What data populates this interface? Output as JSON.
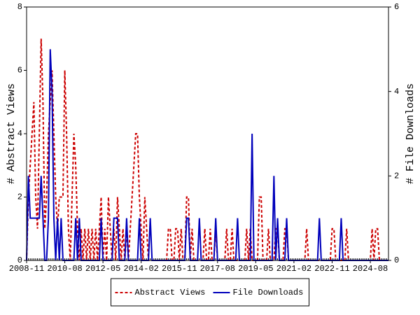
{
  "chart_data": {
    "type": "line",
    "y_label": "# Abstract Views",
    "y2_label": "# File Downloads",
    "x": [
      "2008-11",
      "2008-12",
      "2009-01",
      "2009-02",
      "2009-03",
      "2009-04",
      "2009-05",
      "2009-06",
      "2009-07",
      "2009-08",
      "2009-09",
      "2009-10",
      "2009-11",
      "2009-12",
      "2010-01",
      "2010-02",
      "2010-03",
      "2010-04",
      "2010-05",
      "2010-06",
      "2010-07",
      "2010-08",
      "2010-09",
      "2010-10",
      "2010-11",
      "2010-12",
      "2011-01",
      "2011-02",
      "2011-03",
      "2011-04",
      "2011-05",
      "2011-06",
      "2011-07",
      "2011-08",
      "2011-09",
      "2011-10",
      "2011-11",
      "2011-12",
      "2012-01",
      "2012-02",
      "2012-03",
      "2012-04",
      "2012-05",
      "2012-06",
      "2012-07",
      "2012-08",
      "2012-09",
      "2012-10",
      "2012-11",
      "2012-12",
      "2013-01",
      "2013-02",
      "2013-03",
      "2013-04",
      "2013-05",
      "2013-06",
      "2013-07",
      "2013-08",
      "2013-09",
      "2013-10",
      "2013-11",
      "2013-12",
      "2014-01",
      "2014-02",
      "2014-03",
      "2014-04",
      "2014-05",
      "2014-06",
      "2014-07",
      "2014-08",
      "2014-09",
      "2014-10",
      "2014-11",
      "2014-12",
      "2015-01",
      "2015-02",
      "2015-03",
      "2015-04",
      "2015-05",
      "2015-06",
      "2015-07",
      "2015-08",
      "2015-09",
      "2015-10",
      "2015-11",
      "2015-12",
      "2016-01",
      "2016-02",
      "2016-03",
      "2016-04",
      "2016-05",
      "2016-06",
      "2016-07",
      "2016-08",
      "2016-09",
      "2016-10",
      "2016-11",
      "2016-12",
      "2017-01",
      "2017-02",
      "2017-03",
      "2017-04",
      "2017-05",
      "2017-06",
      "2017-07",
      "2017-08",
      "2017-09",
      "2017-10",
      "2017-11",
      "2017-12",
      "2018-01",
      "2018-02",
      "2018-03",
      "2018-04",
      "2018-05",
      "2018-06",
      "2018-07",
      "2018-08",
      "2018-09",
      "2018-10",
      "2018-11",
      "2018-12",
      "2019-01",
      "2019-02",
      "2019-03",
      "2019-04",
      "2019-05",
      "2019-06",
      "2019-07",
      "2019-08",
      "2019-09",
      "2019-10",
      "2019-11",
      "2019-12",
      "2020-01",
      "2020-02",
      "2020-03",
      "2020-04",
      "2020-05",
      "2020-06",
      "2020-07",
      "2020-08",
      "2020-09",
      "2020-10",
      "2020-11",
      "2020-12",
      "2021-01",
      "2021-02",
      "2021-03",
      "2021-04",
      "2021-05",
      "2021-06",
      "2021-07",
      "2021-08",
      "2021-09",
      "2021-10",
      "2021-11",
      "2021-12",
      "2022-01",
      "2022-02",
      "2022-03",
      "2022-04",
      "2022-05",
      "2022-06",
      "2022-07",
      "2022-08",
      "2022-09",
      "2022-10",
      "2022-11",
      "2022-12",
      "2023-01",
      "2023-02",
      "2023-03",
      "2023-04",
      "2023-05",
      "2023-06",
      "2023-07",
      "2023-08",
      "2023-09",
      "2023-10",
      "2023-11",
      "2023-12",
      "2024-01",
      "2024-02",
      "2024-03",
      "2024-04",
      "2024-05",
      "2024-06",
      "2024-07",
      "2024-08",
      "2024-09",
      "2024-10",
      "2024-11",
      "2024-12",
      "2025-01",
      "2025-02",
      "2025-03",
      "2025-04",
      "2025-05",
      "2025-06"
    ],
    "xlim": [
      "2008-11",
      "2025-06"
    ],
    "xticks": [
      "2008-11",
      "2010-08",
      "2012-05",
      "2014-02",
      "2015-11",
      "2017-08",
      "2019-05",
      "2021-02",
      "2022-11",
      "2024-08"
    ],
    "ylim": [
      0,
      8
    ],
    "yticks": [
      0,
      2,
      4,
      6,
      8
    ],
    "y2lim": [
      0,
      6
    ],
    "y2ticks": [
      0,
      2,
      4,
      6
    ],
    "legend": "bottom",
    "series": [
      {
        "name": "Abstract Views",
        "color": "#cc0000",
        "line_style": "dashed",
        "values": [
          0,
          2,
          3,
          4,
          5,
          2,
          1,
          4,
          7,
          5,
          1,
          2,
          4,
          5,
          6,
          4,
          2,
          1,
          2,
          2,
          2,
          6,
          4,
          1,
          0,
          2,
          4,
          3,
          1,
          0,
          1,
          0,
          1,
          0,
          1,
          0,
          1,
          0,
          1,
          0,
          1,
          2,
          0,
          1,
          0,
          2,
          1,
          0,
          1,
          0,
          2,
          1,
          0,
          1,
          0,
          1,
          0,
          1,
          2,
          3,
          4,
          4,
          2,
          1,
          0,
          2,
          1,
          0,
          0,
          0,
          0,
          0,
          0,
          0,
          0,
          0,
          0,
          0,
          1,
          1,
          0,
          0,
          1,
          1,
          0,
          1,
          0,
          0,
          2,
          2,
          0,
          1,
          0,
          0,
          0,
          0,
          0,
          0,
          1,
          0,
          0,
          1,
          0,
          0,
          1,
          0,
          0,
          0,
          0,
          0,
          1,
          0,
          0,
          1,
          0,
          0,
          0,
          0,
          0,
          0,
          0,
          1,
          0,
          1,
          0,
          0,
          0,
          0,
          2,
          2,
          0,
          0,
          0,
          1,
          0,
          0,
          0,
          1,
          1,
          0,
          0,
          0,
          1,
          1,
          0,
          0,
          0,
          0,
          0,
          0,
          0,
          0,
          0,
          0,
          1,
          0,
          0,
          0,
          0,
          0,
          0,
          0,
          0,
          0,
          0,
          0,
          0,
          0,
          1,
          1,
          0,
          0,
          0,
          0,
          0,
          0,
          1,
          0,
          0,
          0,
          0,
          0,
          0,
          0,
          0,
          0,
          0,
          0,
          0,
          0,
          1,
          0,
          1,
          1,
          0,
          0,
          0,
          0,
          0,
          0
        ]
      },
      {
        "name": "File Downloads",
        "color": "#0000bb",
        "line_style": "solid",
        "axis": "y2",
        "values": [
          0,
          2,
          1,
          1,
          1,
          1,
          1,
          1,
          2,
          1,
          0,
          0,
          1,
          5,
          4,
          1,
          0,
          1,
          0,
          1,
          0,
          0,
          0,
          0,
          0,
          0,
          0,
          1,
          0,
          1,
          0,
          0,
          0,
          0,
          0,
          0,
          0,
          0,
          0,
          0,
          0,
          1,
          0,
          0,
          0,
          0,
          0,
          0,
          1,
          1,
          1,
          0,
          0,
          0,
          0,
          1,
          0,
          0,
          0,
          0,
          0,
          0,
          1,
          0,
          0,
          0,
          0,
          0,
          1,
          0,
          0,
          0,
          0,
          0,
          0,
          0,
          0,
          0,
          0,
          0,
          0,
          0,
          0,
          0,
          0,
          0,
          0,
          0,
          1,
          1,
          0,
          0,
          0,
          0,
          0,
          1,
          0,
          0,
          0,
          0,
          0,
          0,
          0,
          0,
          1,
          0,
          0,
          0,
          0,
          0,
          0,
          0,
          0,
          0,
          0,
          0,
          1,
          0,
          0,
          0,
          0,
          0,
          0,
          0,
          3,
          0,
          0,
          0,
          0,
          0,
          0,
          0,
          0,
          0,
          0,
          0,
          2,
          0,
          1,
          0,
          0,
          0,
          0,
          1,
          0,
          0,
          0,
          0,
          0,
          0,
          0,
          0,
          0,
          0,
          0,
          0,
          0,
          0,
          0,
          0,
          0,
          1,
          0,
          0,
          0,
          0,
          0,
          0,
          0,
          0,
          0,
          0,
          0,
          1,
          0,
          0,
          0,
          0,
          0,
          0,
          0,
          0,
          0,
          0,
          0,
          0,
          0,
          0,
          0,
          0,
          0,
          0,
          0,
          0,
          0,
          0,
          0,
          0,
          0,
          0
        ]
      }
    ]
  }
}
